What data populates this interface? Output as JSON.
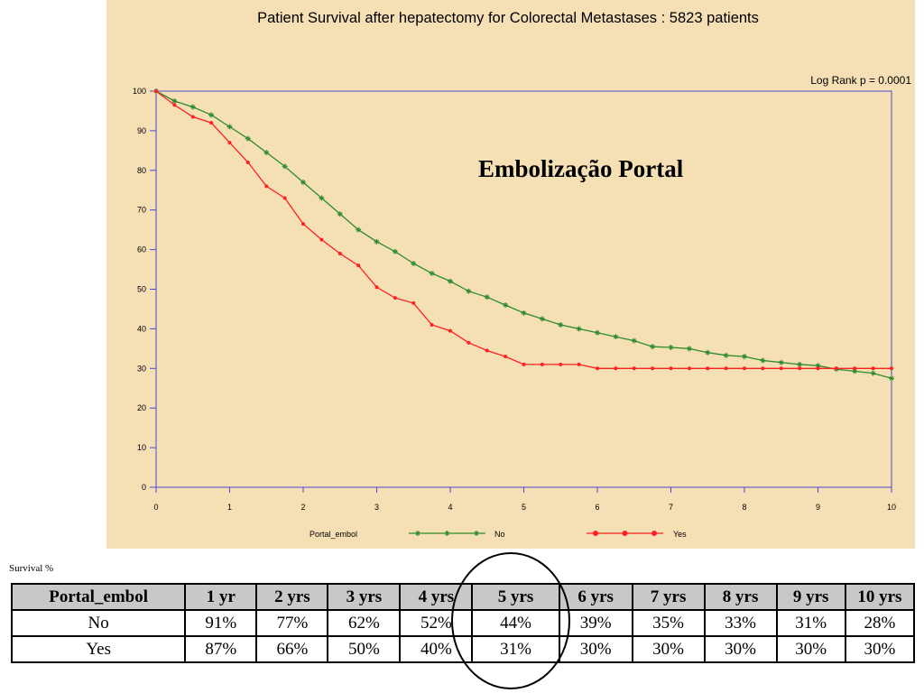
{
  "chart_data": {
    "type": "line",
    "title": "Patient Survival after hepatectomy for Colorectal Metastases : 5823 patients",
    "annotation": "Log Rank p = 0.0001",
    "overlay_text": "Embolização Portal",
    "legend_title": "Portal_embol",
    "xlim": [
      0,
      10
    ],
    "ylim": [
      0,
      100
    ],
    "x_ticks": [
      0,
      1,
      2,
      3,
      4,
      5,
      6,
      7,
      8,
      9,
      10
    ],
    "y_ticks": [
      0,
      10,
      20,
      30,
      40,
      50,
      60,
      70,
      80,
      90,
      100
    ],
    "grid": false,
    "legend_position": "bottom",
    "series": [
      {
        "name": "No",
        "color": "#2e8b2e",
        "marker": "star",
        "x": [
          0,
          0.25,
          0.5,
          0.75,
          1,
          1.25,
          1.5,
          1.75,
          2,
          2.25,
          2.5,
          2.75,
          3,
          3.25,
          3.5,
          3.75,
          4,
          4.25,
          4.5,
          4.75,
          5,
          5.25,
          5.5,
          5.75,
          6,
          6.25,
          6.5,
          6.75,
          7,
          7.25,
          7.5,
          7.75,
          8,
          8.25,
          8.5,
          8.75,
          9,
          9.25,
          9.5,
          9.75,
          10
        ],
        "y": [
          100,
          97.5,
          96,
          94,
          91,
          88,
          84.5,
          81,
          77,
          73,
          69,
          65,
          62,
          59.5,
          56.5,
          54,
          52,
          49.5,
          48,
          46,
          44,
          42.5,
          41,
          40,
          39,
          38,
          37,
          35.5,
          35.3,
          35,
          34,
          33.3,
          33,
          32,
          31.5,
          31,
          30.7,
          29.8,
          29.3,
          28.8,
          27.5
        ]
      },
      {
        "name": "Yes",
        "color": "#ff2020",
        "marker": "circle",
        "x": [
          0,
          0.25,
          0.5,
          0.75,
          1,
          1.25,
          1.5,
          1.75,
          2,
          2.25,
          2.5,
          2.75,
          3,
          3.25,
          3.5,
          3.75,
          4,
          4.25,
          4.5,
          4.75,
          5,
          5.25,
          5.5,
          5.75,
          6,
          6.25,
          6.5,
          6.75,
          7,
          7.25,
          7.5,
          7.75,
          8,
          8.25,
          8.5,
          8.75,
          9,
          9.25,
          9.5,
          9.75,
          10
        ],
        "y": [
          100,
          96.5,
          93.5,
          92,
          87,
          82,
          76,
          73,
          66.5,
          62.5,
          59,
          56,
          50.5,
          47.8,
          46.5,
          41,
          39.5,
          36.5,
          34.5,
          33,
          31,
          31,
          31,
          31,
          30,
          30,
          30,
          30,
          30,
          30,
          30,
          30,
          30,
          30,
          30,
          30,
          30,
          30,
          30,
          30,
          30
        ]
      }
    ]
  },
  "table": {
    "caption": "Survival %",
    "headers": [
      "Portal_embol",
      "1 yr",
      "2 yrs",
      "3 yrs",
      "4 yrs",
      "5 yrs",
      "6 yrs",
      "7 yrs",
      "8 yrs",
      "9 yrs",
      "10 yrs"
    ],
    "rows": [
      [
        "No",
        "91%",
        "77%",
        "62%",
        "52%",
        "44%",
        "39%",
        "35%",
        "33%",
        "31%",
        "28%"
      ],
      [
        "Yes",
        "87%",
        "66%",
        "50%",
        "40%",
        "31%",
        "30%",
        "30%",
        "30%",
        "30%",
        "30%"
      ]
    ]
  }
}
